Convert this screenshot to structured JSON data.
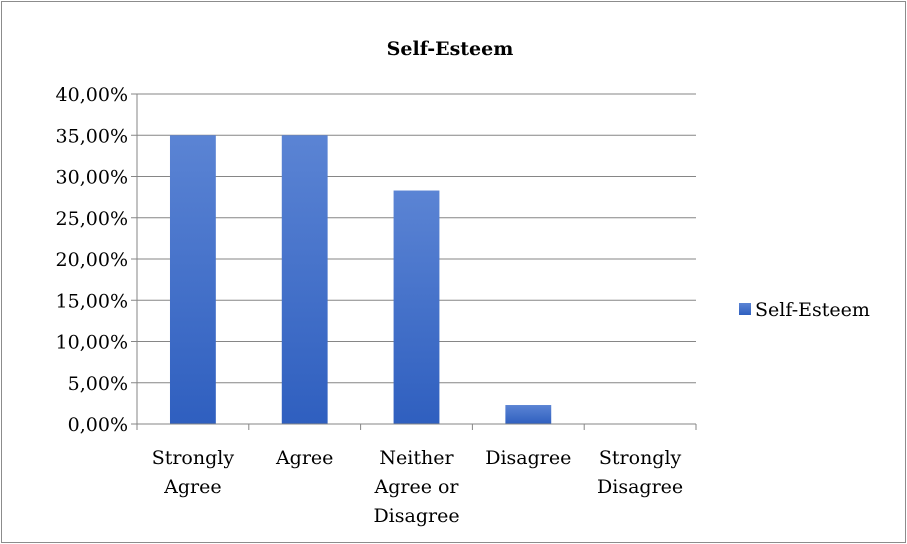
{
  "chart_data": {
    "type": "bar",
    "title": "Self-Esteem",
    "categories": [
      [
        "Strongly",
        "Agree"
      ],
      [
        "Agree"
      ],
      [
        "Neither",
        "Agree or",
        "Disagree"
      ],
      [
        "Disagree"
      ],
      [
        "Strongly",
        "Disagree"
      ]
    ],
    "series": [
      {
        "name": "Self-Esteem",
        "values": [
          35.0,
          35.0,
          28.3,
          2.3,
          0.0
        ]
      }
    ],
    "y_ticks": [
      "0,00%",
      "5,00%",
      "10,00%",
      "15,00%",
      "20,00%",
      "25,00%",
      "30,00%",
      "35,00%",
      "40,00%"
    ],
    "ylim": [
      0,
      40
    ],
    "grid": true,
    "legend_position": "right",
    "colors": {
      "bar_top": "#5B84D4",
      "bar_bottom": "#2F5FBF",
      "grid": "#868686",
      "border": "#8C8C8C"
    }
  }
}
